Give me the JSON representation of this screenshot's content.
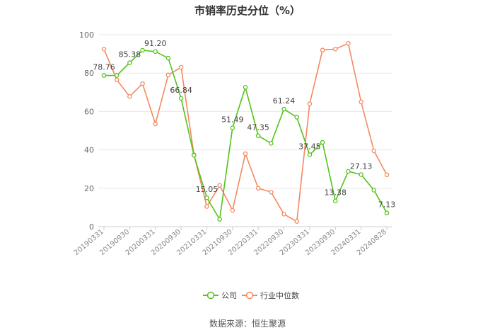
{
  "title": "市销率历史分位（%）",
  "source": "数据来源：恒生聚源",
  "chart_data": {
    "type": "line",
    "title": "市销率历史分位（%）",
    "ylim": [
      0,
      100
    ],
    "yticks": [
      0,
      20,
      40,
      60,
      80,
      100
    ],
    "grid": true,
    "legend_position": "bottom",
    "x_tick_labels": [
      "20190331",
      "20190930",
      "20200331",
      "20200930",
      "20210331",
      "20210930",
      "20220331",
      "20220930",
      "20230331",
      "20230930",
      "20240331",
      "20240828"
    ],
    "series": [
      {
        "name": "公司",
        "color": "#52c41a",
        "values": [
          78.76,
          78.76,
          85.38,
          91.9,
          91.2,
          87.8,
          66.84,
          37.2,
          15.05,
          3.8,
          51.49,
          72.6,
          47.35,
          43.4,
          61.24,
          57.0,
          37.45,
          43.9,
          13.38,
          28.8,
          27.13,
          19.0,
          7.13
        ],
        "labels": {
          "0": "78.76",
          "2": "85.38",
          "4": "91.20",
          "6": "66.84",
          "8": "15.05",
          "10": "51.49",
          "12": "47.35",
          "14": "61.24",
          "16": "37.45",
          "18": "13.38",
          "20": "27.13",
          "22": "7.13"
        }
      },
      {
        "name": "行业中位数",
        "color": "#f4895f",
        "values": [
          92.5,
          76.5,
          67.8,
          74.5,
          53.5,
          79.0,
          83.0,
          37.5,
          10.5,
          21.5,
          8.5,
          38.0,
          20.0,
          18.0,
          6.5,
          2.7,
          64.0,
          92.0,
          92.5,
          95.5,
          65.0,
          39.5,
          27.0
        ]
      }
    ]
  }
}
